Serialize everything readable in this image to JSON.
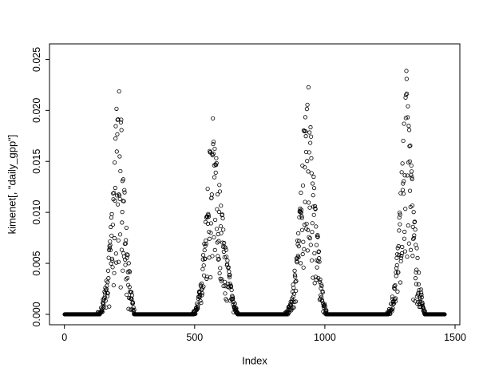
{
  "figure": {
    "background": "#ffffff",
    "point_color": "#000000",
    "axis_color": "#000000"
  },
  "chart_data": {
    "type": "scatter",
    "title": "",
    "xlabel": "Index",
    "ylabel": "kimenet[, \"daily_gpp\"]",
    "marker": "open-circle",
    "grid": false,
    "legend": "none",
    "x_ticks": [
      0,
      500,
      1000,
      1500
    ],
    "x_tick_labels": [
      "0",
      "500",
      "1000",
      "1500"
    ],
    "y_ticks": [
      0.0,
      0.005,
      0.01,
      0.015,
      0.02,
      0.025
    ],
    "y_tick_labels": [
      "0.000",
      "0.005",
      "0.010",
      "0.015",
      "0.020",
      "0.025"
    ],
    "x_data_range": [
      1,
      1460
    ],
    "y_data_range": [
      0,
      0.0255
    ],
    "axis_pad_fraction": 0.04,
    "n_points": 1460,
    "baseline_value": 0,
    "seasons": [
      {
        "start": 128,
        "peak": 208,
        "end": 272,
        "max": 0.0255,
        "rise_pow": 2.2,
        "fall_pow": 1.6
      },
      {
        "start": 492,
        "peak": 565,
        "end": 665,
        "max": 0.0205,
        "rise_pow": 2.2,
        "fall_pow": 1.4
      },
      {
        "start": 846,
        "peak": 932,
        "end": 1008,
        "max": 0.0255,
        "rise_pow": 2.2,
        "fall_pow": 1.6
      },
      {
        "start": 1238,
        "peak": 1312,
        "end": 1385,
        "max": 0.0245,
        "rise_pow": 2.2,
        "fall_pow": 1.6
      }
    ],
    "noise": {
      "seed": 42,
      "top_bias": 0.75,
      "low_outlier_prob": 0.18,
      "jitter": 0.0006
    }
  }
}
